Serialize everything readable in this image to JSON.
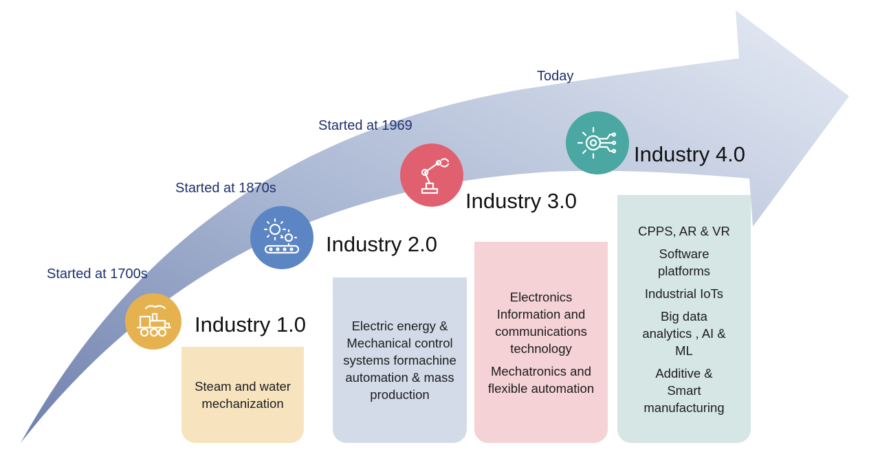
{
  "colors": {
    "arrow_dark": "#7c8cb6",
    "arrow_light": "#dde4f0",
    "date_text": "#1f2f6b",
    "industry1": "#e5b24f",
    "industry2": "#5b85c3",
    "industry3": "#e0606f",
    "industry4": "#4aa7a2",
    "box1": "#f7e4bf",
    "box2": "#d3dbe8",
    "box3": "#f5d2d6",
    "box4": "#d5e6e5"
  },
  "eras": [
    {
      "date": "Started at 1700s",
      "title": "Industry 1.0",
      "icon": "steam-locomotive-icon",
      "description": [
        [
          "Steam and water",
          "mechanization"
        ]
      ]
    },
    {
      "date": "Started at 1870s",
      "title": "Industry 2.0",
      "icon": "gears-conveyor-icon",
      "description": [
        [
          "Electric energy &",
          "Mechanical control",
          "systems formachine",
          "automation & mass",
          "production"
        ]
      ]
    },
    {
      "date": "Started at 1969",
      "title": "Industry 3.0",
      "icon": "robot-arm-icon",
      "description": [
        [
          "Electronics",
          "Information and",
          "communications",
          "technology"
        ],
        [
          "Mechatronics and",
          "flexible automation"
        ]
      ]
    },
    {
      "date": "Today",
      "title": "Industry 4.0",
      "icon": "digital-gear-circuit-icon",
      "description": [
        [
          "CPPS, AR & VR"
        ],
        [
          "Software",
          "platforms"
        ],
        [
          "Industrial IoTs"
        ],
        [
          "Big data",
          "analytics , AI &",
          "ML"
        ],
        [
          "Additive &",
          "Smart",
          "manufacturing"
        ]
      ]
    }
  ]
}
